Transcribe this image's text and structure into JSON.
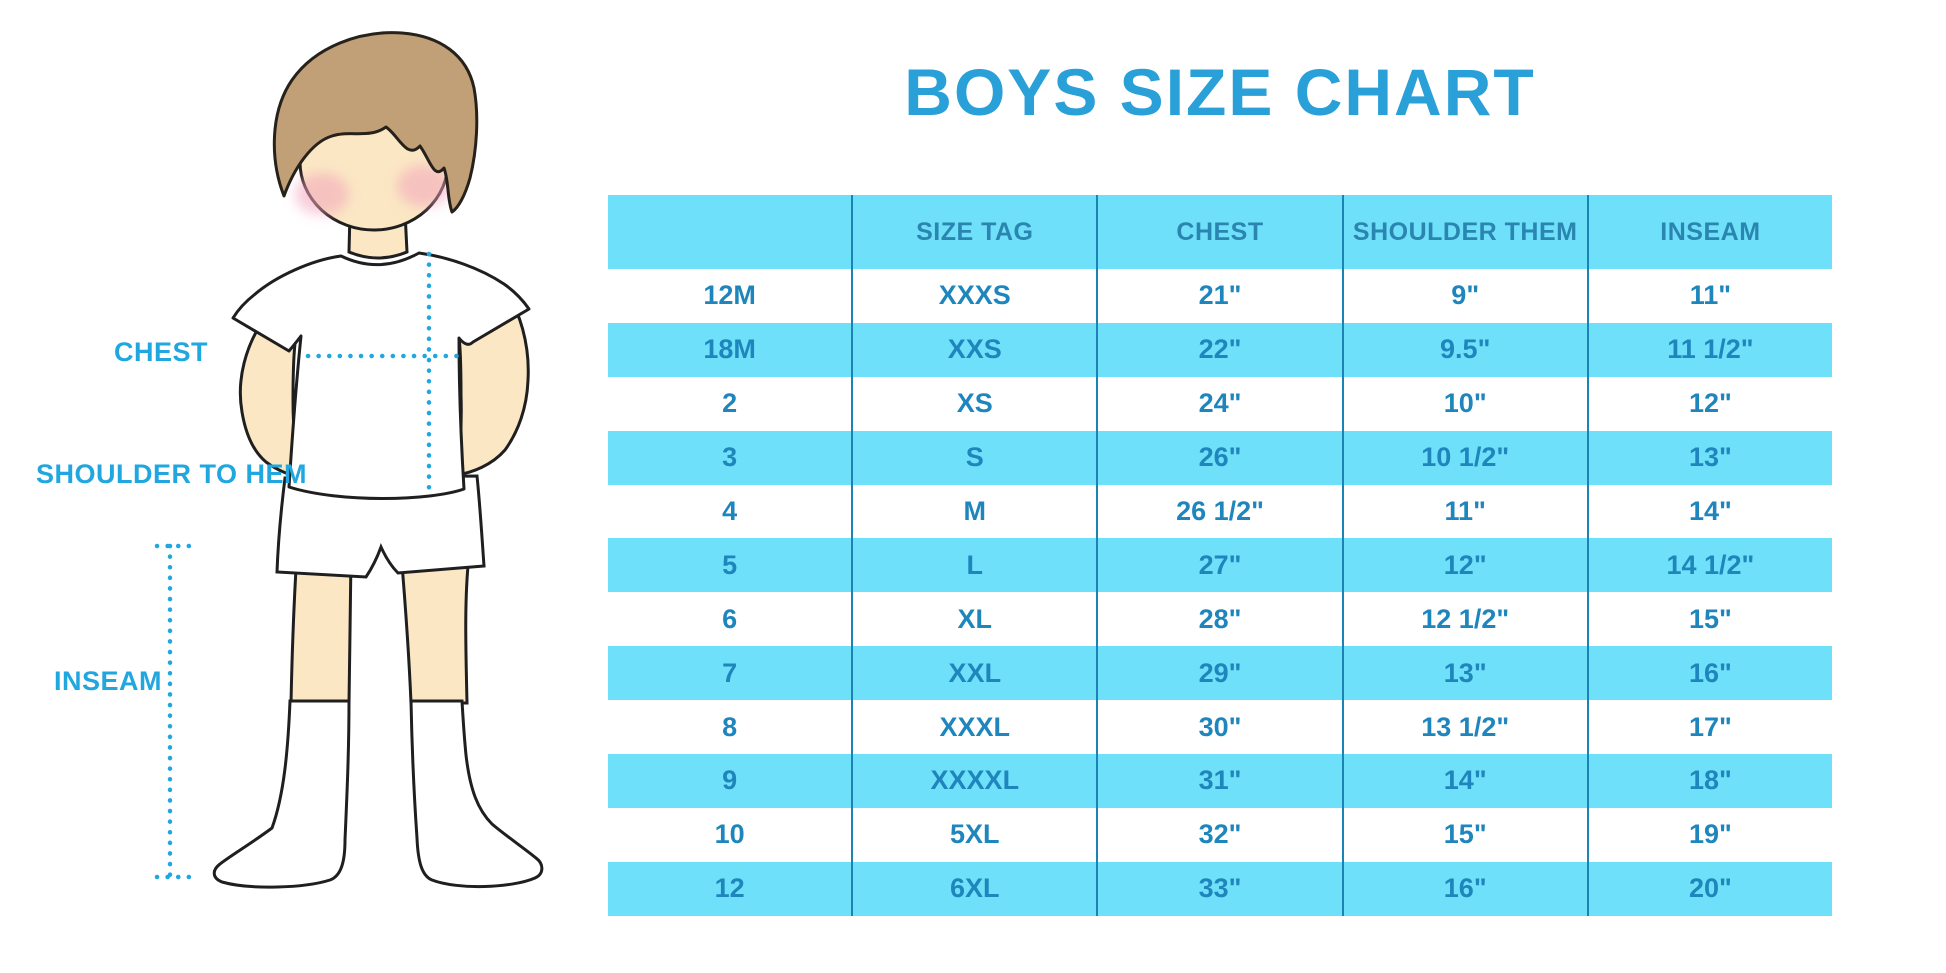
{
  "title": "BOYS SIZE CHART",
  "figure": {
    "illustration": "boy-with-measurement-lines",
    "labels": {
      "chest": "CHEST",
      "shoulder_to_hem": "SHOULDER TO HEM",
      "inseam": "INSEAM"
    }
  },
  "chart_data": {
    "type": "table",
    "title": "BOYS SIZE CHART",
    "columns": [
      "",
      "SIZE TAG",
      "CHEST",
      "SHOULDER THEM",
      "INSEAM"
    ],
    "rows": [
      [
        "12M",
        "XXXS",
        "21\"",
        "9\"",
        "11\""
      ],
      [
        "18M",
        "XXS",
        "22\"",
        "9.5\"",
        "11 1/2\""
      ],
      [
        "2",
        "XS",
        "24\"",
        "10\"",
        "12\""
      ],
      [
        "3",
        "S",
        "26\"",
        "10 1/2\"",
        "13\""
      ],
      [
        "4",
        "M",
        "26 1/2\"",
        "11\"",
        "14\""
      ],
      [
        "5",
        "L",
        "27\"",
        "12\"",
        "14 1/2\""
      ],
      [
        "6",
        "XL",
        "28\"",
        "12 1/2\"",
        "15\""
      ],
      [
        "7",
        "XXL",
        "29\"",
        "13\"",
        "16\""
      ],
      [
        "8",
        "XXXL",
        "30\"",
        "13 1/2\"",
        "17\""
      ],
      [
        "9",
        "XXXXL",
        "31\"",
        "14\"",
        "18\""
      ],
      [
        "10",
        "5XL",
        "32\"",
        "15\"",
        "19\""
      ],
      [
        "12",
        "6XL",
        "33\"",
        "16\"",
        "20\""
      ]
    ]
  },
  "colors": {
    "accent_blue": "#21A7E0",
    "title_blue": "#2AA0D8",
    "stripe_cyan": "#6FE0F9",
    "table_text": "#1E86BC",
    "divider": "#1B84B5",
    "skin": "#FBE7C4",
    "hair": "#C2A077",
    "cheek": "#F3A4BC"
  }
}
